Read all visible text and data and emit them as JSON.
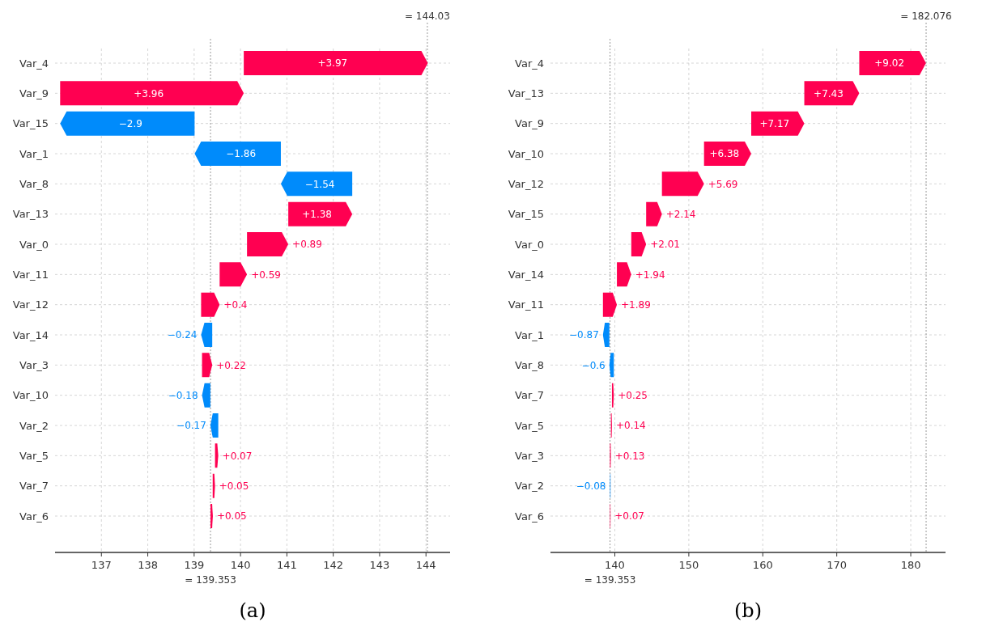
{
  "chart_data": [
    {
      "type": "bar",
      "orientation": "horizontal",
      "xlabel": "(a)",
      "categories": [
        "Var_4",
        "Var_9",
        "Var_15",
        "Var_1",
        "Var_8",
        "Var_13",
        "Var_0",
        "Var_11",
        "Var_12",
        "Var_14",
        "Var_3",
        "Var_10",
        "Var_2",
        "Var_5",
        "Var_7",
        "Var_6"
      ],
      "values": [
        3.97,
        3.96,
        -2.9,
        -1.86,
        -1.54,
        1.38,
        0.89,
        0.59,
        0.4,
        -0.24,
        0.22,
        -0.18,
        -0.17,
        0.07,
        0.05,
        0.05
      ],
      "base": [
        140.07,
        136.11,
        139.01,
        140.87,
        142.41,
        141.03,
        140.14,
        139.55,
        139.15,
        139.39,
        139.17,
        139.35,
        139.52,
        139.45,
        139.4,
        139.353
      ],
      "colors": [
        "#ff0051",
        "#ff0051",
        "#008bfb",
        "#008bfb",
        "#008bfb",
        "#ff0051",
        "#ff0051",
        "#ff0051",
        "#ff0051",
        "#008bfb",
        "#ff0051",
        "#008bfb",
        "#008bfb",
        "#ff0051",
        "#ff0051",
        "#ff0051"
      ],
      "value_labels": [
        "+3.97",
        "+3.96",
        "−2.9",
        "−1.86",
        "−1.54",
        "+1.38",
        "+0.89",
        "+0.59",
        "+0.4",
        "−0.24",
        "+0.22",
        "−0.18",
        "−0.17",
        "+0.07",
        "+0.05",
        "+0.05"
      ],
      "xlim": [
        136.0,
        144.52
      ],
      "xticks": [
        137,
        138,
        139,
        140,
        141,
        142,
        143,
        144
      ],
      "grid": true,
      "ref_lines": [
        {
          "axis": "x",
          "value": 139.353,
          "label": "= 139.353",
          "color": "#999999",
          "line_style": "dotted"
        },
        {
          "axis": "x",
          "value": 144.03,
          "label": "= 144.03",
          "color": "#999999",
          "line_style": "dotted"
        }
      ]
    },
    {
      "type": "bar",
      "orientation": "horizontal",
      "xlabel": "(b)",
      "categories": [
        "Var_4",
        "Var_13",
        "Var_9",
        "Var_10",
        "Var_12",
        "Var_15",
        "Var_0",
        "Var_14",
        "Var_11",
        "Var_1",
        "Var_8",
        "Var_7",
        "Var_5",
        "Var_3",
        "Var_2",
        "Var_6"
      ],
      "values": [
        9.02,
        7.43,
        7.17,
        6.38,
        5.69,
        2.14,
        2.01,
        1.94,
        1.89,
        -0.87,
        -0.6,
        0.25,
        0.14,
        0.13,
        -0.08,
        0.07
      ],
      "base": [
        173.04,
        165.61,
        158.44,
        152.06,
        146.37,
        144.23,
        142.22,
        140.28,
        138.39,
        139.26,
        139.86,
        139.61,
        139.47,
        139.34,
        139.42,
        139.353
      ],
      "colors": [
        "#ff0051",
        "#ff0051",
        "#ff0051",
        "#ff0051",
        "#ff0051",
        "#ff0051",
        "#ff0051",
        "#ff0051",
        "#ff0051",
        "#008bfb",
        "#008bfb",
        "#ff0051",
        "#ff0051",
        "#ff0051",
        "#008bfb",
        "#ff0051"
      ],
      "value_labels": [
        "+9.02",
        "+7.43",
        "+7.17",
        "+6.38",
        "+5.69",
        "+2.14",
        "+2.01",
        "+1.94",
        "+1.89",
        "−0.87",
        "−0.6",
        "+0.25",
        "+0.14",
        "+0.13",
        "−0.08",
        "+0.07"
      ],
      "xlim": [
        131.3,
        184.7
      ],
      "xticks": [
        140,
        150,
        160,
        170,
        180
      ],
      "grid": true,
      "ref_lines": [
        {
          "axis": "x",
          "value": 139.353,
          "label": "= 139.353",
          "color": "#999999",
          "line_style": "dotted"
        },
        {
          "axis": "x",
          "value": 182.076,
          "label": "= 182.076",
          "color": "#999999",
          "line_style": "dotted"
        }
      ]
    }
  ]
}
